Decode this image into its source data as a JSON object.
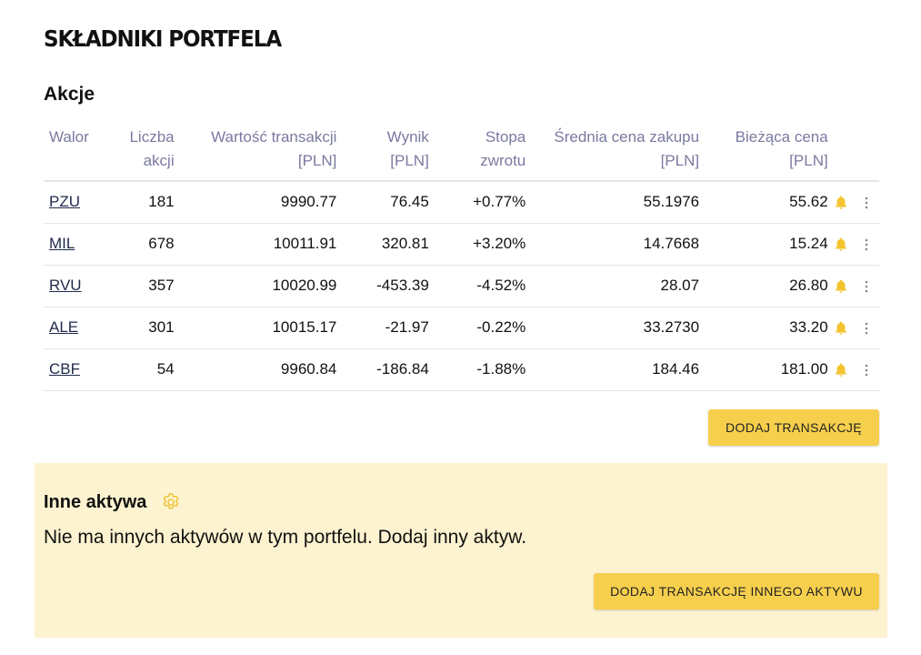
{
  "page_title": "SKŁADNIKI PORTFELA",
  "stocks": {
    "title": "Akcje",
    "headers": {
      "walor": "Walor",
      "liczba_line1": "Liczba",
      "liczba_line2": "akcji",
      "wartosc_line1": "Wartość transakcji",
      "wartosc_line2": "[PLN]",
      "wynik_line1": "Wynik",
      "wynik_line2": "[PLN]",
      "stopa_line1": "Stopa",
      "stopa_line2": "zwrotu",
      "srednia_line1": "Średnia cena zakupu",
      "srednia_line2": "[PLN]",
      "biezaca_line1": "Bieżąca cena",
      "biezaca_line2": "[PLN]"
    },
    "rows": [
      {
        "ticker": "PZU",
        "shares": "181",
        "value": "9990.77",
        "result": "76.45",
        "return": "+0.77%",
        "avg_price": "55.1976",
        "current_price": "55.62"
      },
      {
        "ticker": "MIL",
        "shares": "678",
        "value": "10011.91",
        "result": "320.81",
        "return": "+3.20%",
        "avg_price": "14.7668",
        "current_price": "15.24"
      },
      {
        "ticker": "RVU",
        "shares": "357",
        "value": "10020.99",
        "result": "-453.39",
        "return": "-4.52%",
        "avg_price": "28.07",
        "current_price": "26.80"
      },
      {
        "ticker": "ALE",
        "shares": "301",
        "value": "10015.17",
        "result": "-21.97",
        "return": "-0.22%",
        "avg_price": "33.2730",
        "current_price": "33.20"
      },
      {
        "ticker": "CBF",
        "shares": "54",
        "value": "9960.84",
        "result": "-186.84",
        "return": "-1.88%",
        "avg_price": "184.46",
        "current_price": "181.00"
      }
    ],
    "add_button_label": "DODAJ TRANSAKCJĘ"
  },
  "other_assets": {
    "title": "Inne aktywa",
    "empty_text": "Nie ma innych aktywów w tym portfelu. Dodaj inny aktyw.",
    "add_button_label": "DODAJ TRANSAKCJĘ INNEGO AKTYWU"
  },
  "icons": {
    "alert": "bell-icon",
    "row_menu": "kebab-menu-icon",
    "settings": "gear-icon"
  },
  "colors": {
    "accent": "#f6cf4d",
    "panel_bg": "#fdf3d0",
    "positive": "#5fae6e",
    "negative": "#dd4b4b",
    "header_text": "#7a7aa0"
  }
}
